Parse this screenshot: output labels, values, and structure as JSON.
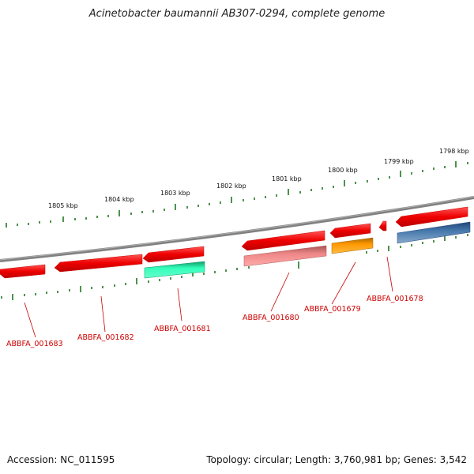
{
  "title": "Acinetobacter baumannii AB307-0294, complete genome",
  "footer": {
    "accession": "Accession: NC_011595",
    "summary": "Topology: circular; Length: 3,760,981 bp; Genes: 3,542"
  },
  "scale_labels": [
    "1798 kbp",
    "1799 kbp",
    "1800 kbp",
    "1801 kbp",
    "1802 kbp",
    "1803 kbp",
    "1804 kbp",
    "1805 kbp"
  ],
  "gene_labels": [
    "ABBFA_001678",
    "ABBFA_001679",
    "ABBFA_001680",
    "ABBFA_001681",
    "ABBFA_001682",
    "ABBFA_001683"
  ],
  "feature_colors": {
    "gene": "#ee0000",
    "cds_cyan": "#22ddaa",
    "cds_pink": "#ee8888",
    "cds_orange": "#ff9900",
    "cds_blue": "#4477aa",
    "backbone": "#808080",
    "ticks": "#227722",
    "label": "#cc0000"
  }
}
